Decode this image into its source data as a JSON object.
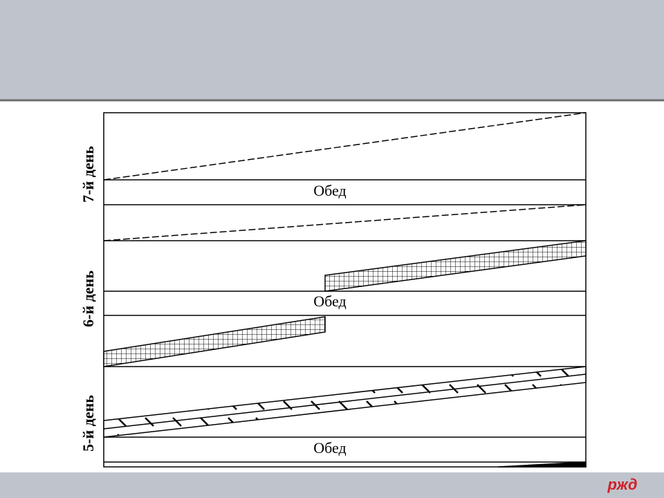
{
  "days": [
    {
      "label": "7-й день",
      "lunch": "Обед"
    },
    {
      "label": "6-й день",
      "lunch": "Обед"
    },
    {
      "label": "5-й день",
      "lunch": "Обед"
    }
  ],
  "logo": "ржд"
}
